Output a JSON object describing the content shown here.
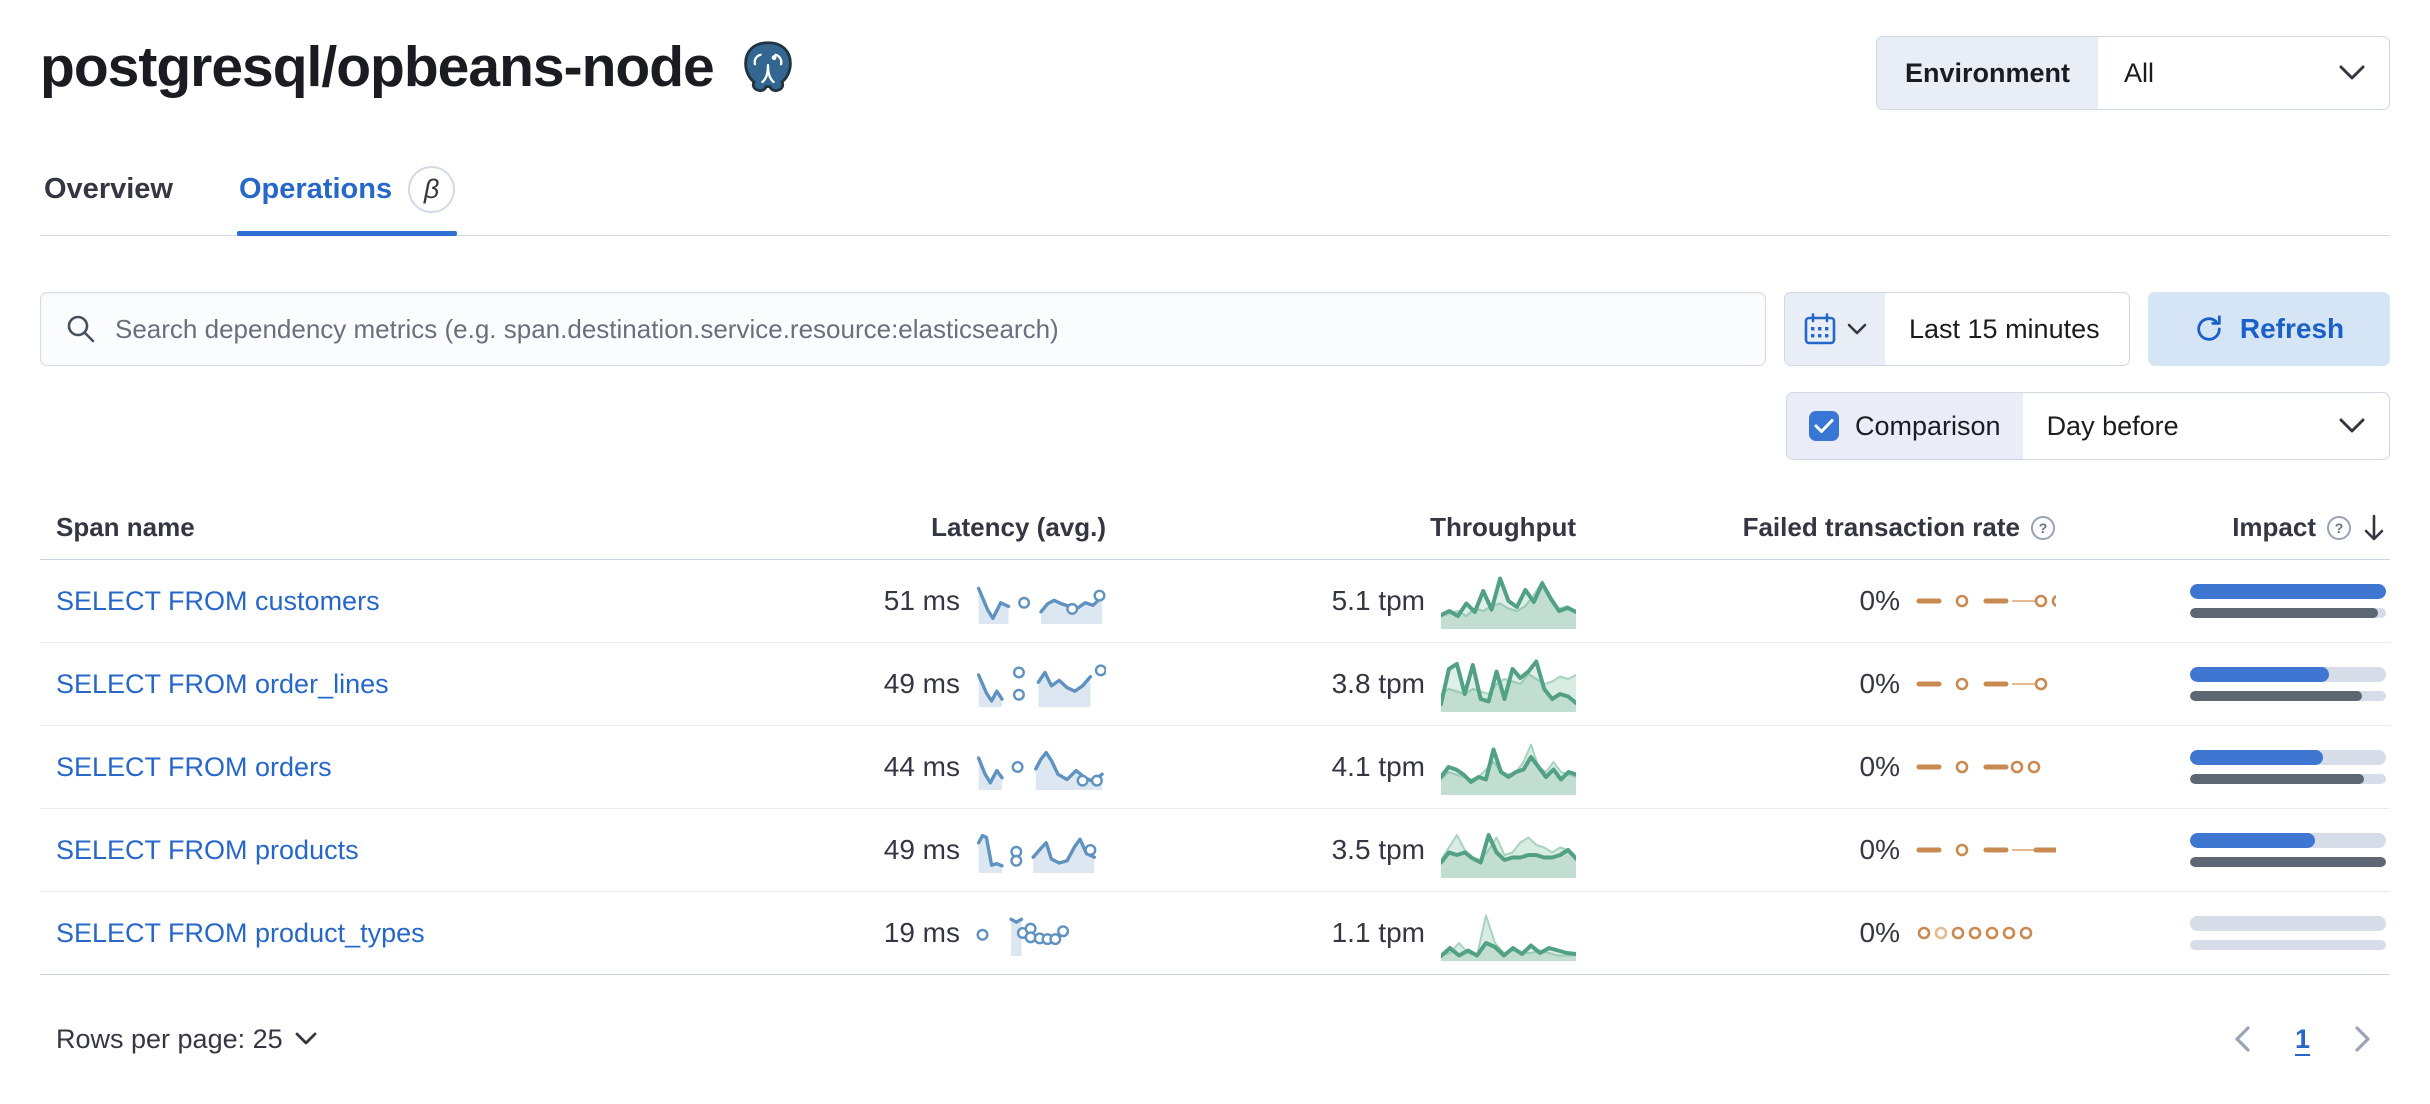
{
  "header": {
    "title": "postgresql/opbeans-node",
    "icon": "postgresql-elephant-icon"
  },
  "environment": {
    "label": "Environment",
    "value": "All"
  },
  "tabs": [
    {
      "label": "Overview",
      "active": false
    },
    {
      "label": "Operations",
      "active": true,
      "badge": "β"
    }
  ],
  "search": {
    "placeholder": "Search dependency metrics (e.g. span.destination.service.resource:elasticsearch)",
    "icon": "search-icon"
  },
  "time_picker": {
    "value": "Last 15 minutes",
    "icon": "calendar-icon"
  },
  "refresh": {
    "label": "Refresh",
    "icon": "refresh-icon"
  },
  "comparison": {
    "label": "Comparison",
    "checked": true,
    "value": "Day before"
  },
  "colors": {
    "link_blue": "#2767c8",
    "latency_blue": "#6092C0",
    "latency_fill": "#dce7f2",
    "throughput_green": "#53a184",
    "throughput_prev": "#a8d4bf",
    "throughput_fill": "#d9ece2",
    "failed_orange": "#c98a52",
    "failed_orange_light": "#e3bc93",
    "impact_blue": "#3e76d1",
    "impact_gray": "#5d6673",
    "impact_track": "#d6dce8"
  },
  "table": {
    "headers": {
      "span_name": "Span name",
      "latency": "Latency (avg.)",
      "throughput": "Throughput",
      "failed": "Failed transaction rate",
      "impact": "Impact"
    },
    "sorted_by": "impact",
    "sort_direction": "desc",
    "rows": [
      {
        "span_name": "SELECT FROM customers",
        "latency": "51 ms",
        "throughput": "5.1 tpm",
        "failed_rate": "0%",
        "latency_spark": {
          "segments": [
            [
              [
                2,
                0.85
              ],
              [
                9,
                0.25
              ],
              [
                13,
                0.02
              ],
              [
                19,
                0.45
              ],
              [
                25,
                0.35
              ]
            ],
            [
              [
                50,
                0.2
              ],
              [
                55,
                0.42
              ],
              [
                60,
                0.52
              ],
              [
                66,
                0.42
              ],
              [
                72,
                0.35
              ],
              [
                78,
                0.3
              ],
              [
                84,
                0.45
              ],
              [
                90,
                0.38
              ],
              [
                97,
                0.62
              ]
            ]
          ],
          "markers": [
            [
              37,
              0.45
            ],
            [
              74,
              0.28
            ],
            [
              95,
              0.65
            ]
          ]
        },
        "throughput_spark": {
          "current": [
            0.22,
            0.3,
            0.2,
            0.45,
            0.28,
            0.7,
            0.33,
            0.95,
            0.5,
            0.38,
            0.72,
            0.48,
            0.85,
            0.55,
            0.3,
            0.36,
            0.28
          ],
          "previous": [
            0.18,
            0.25,
            0.3,
            0.2,
            0.35,
            0.3,
            0.4,
            0.45,
            0.35,
            0.3,
            0.4,
            0.62,
            0.9,
            0.5,
            0.35,
            0.4,
            0.3
          ]
        },
        "failed_spark": [
          "dash",
          "gap",
          "ring",
          "gap",
          "dash",
          "thin",
          "ring",
          "ring"
        ],
        "impact": {
          "current": 100,
          "previous": 96
        }
      },
      {
        "span_name": "SELECT FROM order_lines",
        "latency": "49 ms",
        "throughput": "3.8 tpm",
        "failed_rate": "0%",
        "latency_spark": {
          "segments": [
            [
              [
                2,
                0.75
              ],
              [
                8,
                0.25
              ],
              [
                12,
                0.03
              ],
              [
                16,
                0.3
              ],
              [
                20,
                0.08
              ]
            ],
            [
              [
                48,
                0.55
              ],
              [
                53,
                0.82
              ],
              [
                58,
                0.45
              ],
              [
                64,
                0.6
              ],
              [
                70,
                0.4
              ],
              [
                76,
                0.3
              ],
              [
                82,
                0.45
              ],
              [
                88,
                0.7
              ]
            ]
          ],
          "markers": [
            [
              33,
              0.82
            ],
            [
              33,
              0.2
            ],
            [
              96,
              0.88
            ]
          ]
        },
        "throughput_spark": {
          "current": [
            0.1,
            0.8,
            0.9,
            0.3,
            0.88,
            0.2,
            0.15,
            0.75,
            0.2,
            0.8,
            0.62,
            0.75,
            0.95,
            0.4,
            0.2,
            0.3,
            0.25,
            0.12
          ],
          "previous": [
            0.3,
            0.4,
            0.35,
            0.3,
            0.4,
            0.35,
            0.3,
            0.5,
            0.6,
            0.55,
            0.5,
            0.7,
            0.6,
            0.5,
            0.55,
            0.65,
            0.6,
            0.68
          ]
        },
        "failed_spark": [
          "dash",
          "gap",
          "ring",
          "gap",
          "dash",
          "thin",
          "ring"
        ],
        "impact": {
          "current": 71,
          "previous": 88
        }
      },
      {
        "span_name": "SELECT FROM orders",
        "latency": "44 ms",
        "throughput": "4.1 tpm",
        "failed_rate": "0%",
        "latency_spark": {
          "segments": [
            [
              [
                2,
                0.75
              ],
              [
                7,
                0.3
              ],
              [
                11,
                0.06
              ],
              [
                16,
                0.4
              ],
              [
                20,
                0.2
              ]
            ],
            [
              [
                46,
                0.45
              ],
              [
                50,
                0.72
              ],
              [
                54,
                0.9
              ],
              [
                58,
                0.68
              ],
              [
                63,
                0.3
              ],
              [
                70,
                0.15
              ],
              [
                77,
                0.4
              ],
              [
                84,
                0.2
              ],
              [
                90,
                0.1
              ],
              [
                97,
                0.3
              ]
            ]
          ],
          "markers": [
            [
              32,
              0.5
            ],
            [
              82,
              0.12
            ],
            [
              93,
              0.12
            ]
          ]
        },
        "throughput_spark": {
          "current": [
            0.3,
            0.5,
            0.45,
            0.35,
            0.2,
            0.3,
            0.25,
            0.85,
            0.4,
            0.3,
            0.4,
            0.45,
            0.7,
            0.5,
            0.3,
            0.45,
            0.25,
            0.4,
            0.35
          ],
          "previous": [
            0.25,
            0.4,
            0.35,
            0.3,
            0.25,
            0.3,
            0.45,
            0.6,
            0.4,
            0.35,
            0.4,
            0.6,
            0.95,
            0.5,
            0.4,
            0.6,
            0.4,
            0.35,
            0.3
          ]
        },
        "failed_spark": [
          "dash",
          "gap",
          "ring",
          "gap",
          "dash",
          "ring",
          "ring"
        ],
        "impact": {
          "current": 68,
          "previous": 89
        }
      },
      {
        "span_name": "SELECT FROM products",
        "latency": "49 ms",
        "throughput": "3.5 tpm",
        "failed_rate": "0%",
        "latency_spark": {
          "segments": [
            [
              [
                2,
                0.7
              ],
              [
                5,
                0.9
              ],
              [
                8,
                0.85
              ],
              [
                12,
                0.08
              ],
              [
                16,
                0.12
              ],
              [
                20,
                0.06
              ]
            ],
            [
              [
                44,
                0.3
              ],
              [
                50,
                0.55
              ],
              [
                54,
                0.7
              ],
              [
                58,
                0.25
              ],
              [
                64,
                0.14
              ],
              [
                70,
                0.2
              ],
              [
                76,
                0.6
              ],
              [
                80,
                0.8
              ],
              [
                85,
                0.4
              ],
              [
                91,
                0.3
              ]
            ]
          ],
          "markers": [
            [
              31,
              0.45
            ],
            [
              31,
              0.2
            ],
            [
              88,
              0.5
            ]
          ]
        },
        "throughput_spark": {
          "current": [
            0.25,
            0.45,
            0.4,
            0.45,
            0.33,
            0.25,
            0.8,
            0.45,
            0.3,
            0.35,
            0.35,
            0.4,
            0.4,
            0.35,
            0.35,
            0.4,
            0.5,
            0.33
          ],
          "previous": [
            0.3,
            0.55,
            0.8,
            0.5,
            0.35,
            0.3,
            0.5,
            0.75,
            0.4,
            0.45,
            0.65,
            0.75,
            0.6,
            0.55,
            0.45,
            0.55,
            0.5,
            0.35
          ]
        },
        "failed_spark": [
          "dash",
          "gap",
          "ring",
          "gap",
          "dash",
          "thin",
          "dash"
        ],
        "impact": {
          "current": 64,
          "previous": 100
        }
      },
      {
        "span_name": "SELECT FROM product_types",
        "latency": "19 ms",
        "throughput": "1.1 tpm",
        "failed_rate": "0%",
        "latency_spark": {
          "segments": [
            [
              [
                27,
                0.88
              ],
              [
                31,
                0.8
              ],
              [
                35,
                0.88
              ]
            ]
          ],
          "markers": [
            [
              5,
              0.45
            ],
            [
              36,
              0.5
            ],
            [
              42,
              0.62
            ],
            [
              42,
              0.38
            ],
            [
              49,
              0.35
            ],
            [
              55,
              0.33
            ],
            [
              61,
              0.33
            ],
            [
              67,
              0.55
            ]
          ]
        },
        "throughput_spark": {
          "current": [
            0.04,
            0.2,
            0.05,
            0.15,
            0.05,
            0.3,
            0.22,
            0.05,
            0.2,
            0.08,
            0.25,
            0.1,
            0.2,
            0.15,
            0.1,
            0.08
          ],
          "previous": [
            0.05,
            0.1,
            0.3,
            0.1,
            0.05,
            0.85,
            0.3,
            0.1,
            0.15,
            0.1,
            0.1,
            0.15,
            0.1,
            0.05,
            0.05,
            0.05
          ]
        },
        "failed_spark": [
          "ring",
          "ringlight",
          "ring",
          "ring",
          "ring",
          "ring",
          "ring"
        ],
        "impact": {
          "current": 0,
          "previous": 0
        }
      }
    ]
  },
  "footer": {
    "rows_per_page": "Rows per page: 25",
    "page": "1"
  }
}
